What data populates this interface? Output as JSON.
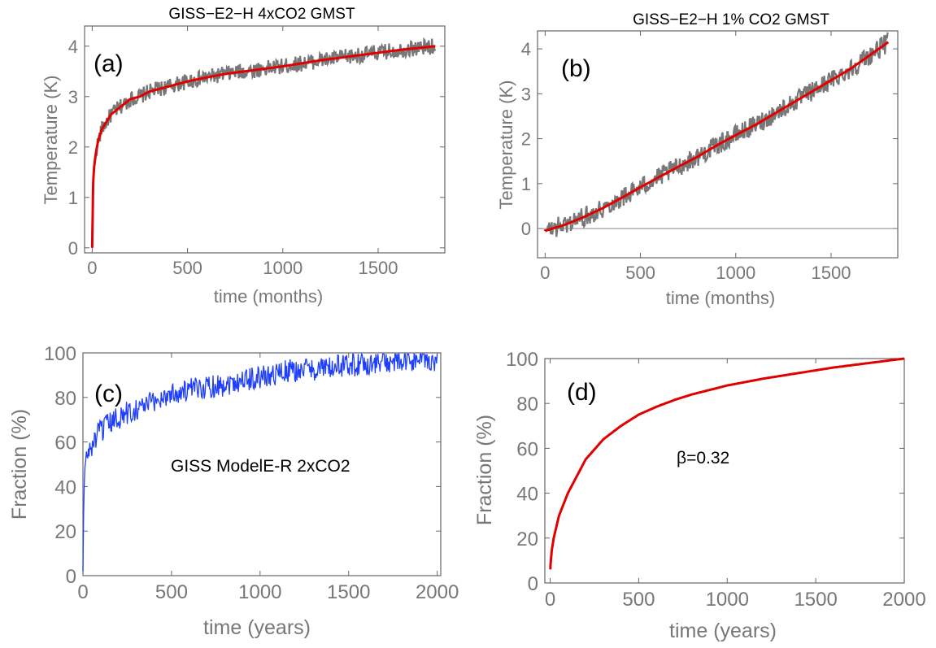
{
  "chart_data": [
    {
      "type": "line",
      "panel": "(a)",
      "title": "GISS−E2−H 4xCO2 GMST",
      "xlabel": "time (months)",
      "ylabel": "Temperature (K)",
      "xlim": [
        -40,
        1850
      ],
      "ylim": [
        -0.1,
        4.4
      ],
      "xticks": [
        0,
        500,
        1000,
        1500
      ],
      "yticks": [
        0,
        1,
        2,
        3,
        4
      ],
      "grid": false,
      "series": [
        {
          "kind": "noisy",
          "color": "#777777",
          "x": [
            0,
            5,
            10,
            20,
            30,
            50,
            75,
            100,
            150,
            200,
            250,
            300,
            400,
            500,
            600,
            700,
            800,
            900,
            1000,
            1100,
            1200,
            1300,
            1400,
            1500,
            1600,
            1700,
            1800
          ],
          "y": [
            0.0,
            1.3,
            1.6,
            1.9,
            2.1,
            2.35,
            2.5,
            2.65,
            2.8,
            2.95,
            3.0,
            3.1,
            3.2,
            3.3,
            3.38,
            3.45,
            3.5,
            3.55,
            3.6,
            3.66,
            3.72,
            3.77,
            3.82,
            3.87,
            3.92,
            3.96,
            4.0
          ]
        },
        {
          "kind": "fit",
          "color": "#e00000",
          "x": [
            0,
            5,
            10,
            20,
            30,
            50,
            75,
            100,
            150,
            200,
            250,
            300,
            400,
            500,
            600,
            700,
            800,
            900,
            1000,
            1100,
            1200,
            1300,
            1400,
            1500,
            1600,
            1700,
            1800
          ],
          "y": [
            0.0,
            1.3,
            1.6,
            1.9,
            2.1,
            2.35,
            2.5,
            2.65,
            2.8,
            2.95,
            3.0,
            3.1,
            3.2,
            3.3,
            3.38,
            3.45,
            3.5,
            3.55,
            3.6,
            3.66,
            3.72,
            3.77,
            3.82,
            3.87,
            3.92,
            3.96,
            4.0
          ]
        }
      ]
    },
    {
      "type": "line",
      "panel": "(b)",
      "title": "GISS−E2−H 1% CO2 GMST",
      "xlabel": "time (months)",
      "ylabel": "Temperature (K)",
      "xlim": [
        -40,
        1850
      ],
      "ylim": [
        -0.65,
        4.4
      ],
      "xticks": [
        0,
        500,
        1000,
        1500
      ],
      "yticks": [
        0,
        1,
        2,
        3,
        4
      ],
      "zero_line": true,
      "grid": false,
      "series": [
        {
          "kind": "noisy",
          "color": "#777777",
          "x": [
            0,
            100,
            200,
            300,
            400,
            500,
            600,
            700,
            800,
            900,
            1000,
            1100,
            1200,
            1300,
            1400,
            1500,
            1600,
            1700,
            1800
          ],
          "y": [
            -0.05,
            0.08,
            0.25,
            0.45,
            0.68,
            0.92,
            1.15,
            1.38,
            1.6,
            1.85,
            2.08,
            2.3,
            2.55,
            2.8,
            3.05,
            3.3,
            3.55,
            3.85,
            4.15
          ]
        },
        {
          "kind": "fit",
          "color": "#e00000",
          "x": [
            0,
            100,
            200,
            300,
            400,
            500,
            600,
            700,
            800,
            900,
            1000,
            1100,
            1200,
            1300,
            1400,
            1500,
            1600,
            1700,
            1800
          ],
          "y": [
            -0.05,
            0.08,
            0.25,
            0.45,
            0.68,
            0.92,
            1.15,
            1.38,
            1.6,
            1.85,
            2.08,
            2.3,
            2.55,
            2.8,
            3.05,
            3.3,
            3.55,
            3.85,
            4.15
          ]
        }
      ]
    },
    {
      "type": "line",
      "panel": "(c)",
      "annotation": "GISS ModelE-R 2xCO2",
      "xlabel": "time (years)",
      "ylabel": "Fraction (%)",
      "xlim": [
        0,
        2020
      ],
      "ylim": [
        0,
        100
      ],
      "xticks": [
        0,
        500,
        1000,
        1500,
        2000
      ],
      "yticks": [
        0,
        20,
        40,
        60,
        80,
        100
      ],
      "grid": false,
      "series": [
        {
          "kind": "noisy",
          "color": "#1f3fff",
          "x": [
            0,
            5,
            10,
            20,
            30,
            50,
            75,
            100,
            150,
            200,
            300,
            400,
            500,
            600,
            700,
            800,
            900,
            1000,
            1100,
            1200,
            1300,
            1400,
            1500,
            1600,
            1700,
            1800,
            1900,
            2000
          ],
          "y": [
            2,
            35,
            48,
            53,
            55,
            58,
            62,
            65,
            68,
            71,
            75,
            78,
            82,
            83,
            85,
            86,
            88,
            89,
            91,
            92,
            93,
            93,
            95,
            95,
            96,
            96,
            97,
            97
          ]
        }
      ]
    },
    {
      "type": "line",
      "panel": "(d)",
      "annotation": "β=0.32",
      "xlabel": "time (years)",
      "ylabel": "Fraction (%)",
      "xlim": [
        -30,
        2000
      ],
      "ylim": [
        0,
        100
      ],
      "xticks": [
        0,
        500,
        1000,
        1500,
        2000
      ],
      "yticks": [
        0,
        20,
        40,
        60,
        80,
        100
      ],
      "grid": false,
      "series": [
        {
          "kind": "fit",
          "color": "#e00000",
          "x": [
            1,
            2,
            5,
            10,
            20,
            50,
            100,
            200,
            300,
            400,
            500,
            600,
            700,
            800,
            900,
            1000,
            1200,
            1400,
            1600,
            1800,
            2000
          ],
          "y": [
            6,
            8,
            11,
            15,
            20,
            30,
            40,
            55,
            64,
            70,
            75,
            78.5,
            81.5,
            84,
            86,
            88,
            91,
            93.5,
            96,
            98,
            100
          ]
        }
      ]
    }
  ]
}
